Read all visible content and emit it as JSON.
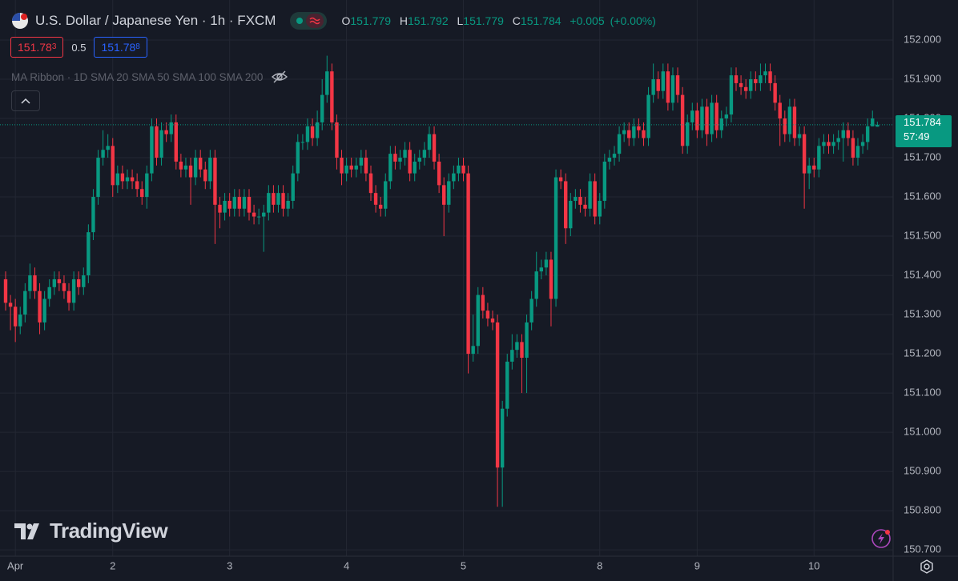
{
  "chart_data": {
    "type": "candlestick",
    "title": "U.S. Dollar / Japanese Yen · 1h · FXCM",
    "up_color": "#089981",
    "down_color": "#f23645",
    "grid": true,
    "last_price_line": true,
    "ylim": [
      150.684,
      152.102
    ],
    "yticks": [
      {
        "value": 150.7,
        "label": "150.700"
      },
      {
        "value": 150.8,
        "label": "150.800"
      },
      {
        "value": 150.9,
        "label": "150.900"
      },
      {
        "value": 151.0,
        "label": "151.000"
      },
      {
        "value": 151.1,
        "label": "151.100"
      },
      {
        "value": 151.2,
        "label": "151.200"
      },
      {
        "value": 151.3,
        "label": "151.300"
      },
      {
        "value": 151.4,
        "label": "151.400"
      },
      {
        "value": 151.5,
        "label": "151.500"
      },
      {
        "value": 151.6,
        "label": "151.600"
      },
      {
        "value": 151.7,
        "label": "151.700"
      },
      {
        "value": 151.8,
        "label": "151.800"
      },
      {
        "value": 151.9,
        "label": "151.900"
      },
      {
        "value": 152.0,
        "label": "152.000"
      }
    ],
    "categories": [
      null,
      null,
      "Apr",
      null,
      null,
      null,
      null,
      null,
      null,
      null,
      null,
      null,
      null,
      null,
      null,
      null,
      null,
      null,
      null,
      null,
      null,
      null,
      "2",
      null,
      null,
      null,
      null,
      null,
      null,
      null,
      null,
      null,
      null,
      null,
      null,
      null,
      null,
      null,
      null,
      null,
      null,
      null,
      null,
      null,
      null,
      null,
      "3",
      null,
      null,
      null,
      null,
      null,
      null,
      null,
      null,
      null,
      null,
      null,
      null,
      null,
      null,
      null,
      null,
      null,
      null,
      null,
      null,
      null,
      null,
      null,
      "4",
      null,
      null,
      null,
      null,
      null,
      null,
      null,
      null,
      null,
      null,
      null,
      null,
      null,
      null,
      null,
      null,
      null,
      null,
      null,
      null,
      null,
      null,
      null,
      "5",
      null,
      null,
      null,
      null,
      null,
      null,
      null,
      null,
      null,
      null,
      null,
      null,
      null,
      null,
      null,
      null,
      null,
      null,
      null,
      null,
      null,
      null,
      null,
      null,
      null,
      null,
      null,
      "8",
      null,
      null,
      null,
      null,
      null,
      null,
      null,
      null,
      null,
      null,
      null,
      null,
      null,
      null,
      null,
      null,
      null,
      null,
      null,
      "9",
      null,
      null,
      null,
      null,
      null,
      null,
      null,
      null,
      null,
      null,
      null,
      null,
      null,
      null,
      null,
      null,
      null,
      null,
      null,
      null,
      null,
      null,
      null,
      "10",
      null,
      null,
      null,
      null,
      null,
      null,
      null,
      null,
      null,
      null,
      null,
      null,
      null
    ],
    "open": [
      151.39,
      151.33,
      151.32,
      151.27,
      151.3,
      151.36,
      151.4,
      151.36,
      151.28,
      151.34,
      151.37,
      151.39,
      151.38,
      151.36,
      151.33,
      151.39,
      151.37,
      151.4,
      151.51,
      151.6,
      151.7,
      151.72,
      151.73,
      151.63,
      151.66,
      151.64,
      151.65,
      151.64,
      151.62,
      151.6,
      151.66,
      151.78,
      151.7,
      151.77,
      151.76,
      151.79,
      151.69,
      151.67,
      151.68,
      151.65,
      151.7,
      151.67,
      151.64,
      151.7,
      151.58,
      151.56,
      151.59,
      151.57,
      151.6,
      151.57,
      151.6,
      151.56,
      151.55,
      151.55,
      151.56,
      151.61,
      151.58,
      151.61,
      151.57,
      151.59,
      151.66,
      151.74,
      151.74,
      151.78,
      151.75,
      151.79,
      151.86,
      151.92,
      151.79,
      151.7,
      151.66,
      151.68,
      151.67,
      151.68,
      151.7,
      151.66,
      151.61,
      151.58,
      151.57,
      151.64,
      151.71,
      151.69,
      151.7,
      151.72,
      151.66,
      151.69,
      151.7,
      151.72,
      151.76,
      151.69,
      151.63,
      151.58,
      151.64,
      151.66,
      151.68,
      151.66,
      151.2,
      151.22,
      151.35,
      151.31,
      151.29,
      151.28,
      150.91,
      151.06,
      151.18,
      151.21,
      151.23,
      151.19,
      151.28,
      151.34,
      151.41,
      151.42,
      151.44,
      151.34,
      151.65,
      151.64,
      151.52,
      151.59,
      151.6,
      151.58,
      151.57,
      151.64,
      151.55,
      151.59,
      151.69,
      151.7,
      151.71,
      151.76,
      151.77,
      151.75,
      151.78,
      151.77,
      151.75,
      151.86,
      151.9,
      151.87,
      151.92,
      151.84,
      151.91,
      151.86,
      151.73,
      151.79,
      151.82,
      151.77,
      151.83,
      151.76,
      151.84,
      151.77,
      151.8,
      151.81,
      151.91,
      151.89,
      151.88,
      151.87,
      151.9,
      151.89,
      151.91,
      151.92,
      151.89,
      151.84,
      151.8,
      151.76,
      151.83,
      151.75,
      151.76,
      151.66,
      151.68,
      151.67,
      151.73,
      151.74,
      151.73,
      151.74,
      151.75,
      151.77,
      151.75,
      151.7,
      151.73,
      151.74,
      151.78,
      151.779
    ],
    "high": [
      151.41,
      151.35,
      151.34,
      151.32,
      151.38,
      151.43,
      151.42,
      151.38,
      151.36,
      151.39,
      151.41,
      151.41,
      151.4,
      151.38,
      151.41,
      151.41,
      151.42,
      151.53,
      151.62,
      151.72,
      151.77,
      151.76,
      151.75,
      151.68,
      151.68,
      151.67,
      151.67,
      151.66,
      151.64,
      151.68,
      151.8,
      151.8,
      151.79,
      151.79,
      151.81,
      151.81,
      151.71,
      151.7,
      151.7,
      151.72,
      151.72,
      151.69,
      151.72,
      151.72,
      151.6,
      151.61,
      151.61,
      151.62,
      151.62,
      151.62,
      151.62,
      151.58,
      151.57,
      151.58,
      151.63,
      151.63,
      151.63,
      151.63,
      151.61,
      151.68,
      151.76,
      151.76,
      151.8,
      151.8,
      151.82,
      151.9,
      151.96,
      151.94,
      151.81,
      151.72,
      151.7,
      151.7,
      151.7,
      151.72,
      151.72,
      151.68,
      151.63,
      151.6,
      151.66,
      151.73,
      151.73,
      151.72,
      151.74,
      151.74,
      151.71,
      151.72,
      151.74,
      151.78,
      151.78,
      151.71,
      151.65,
      151.66,
      151.68,
      151.7,
      151.7,
      151.68,
      151.3,
      151.37,
      151.37,
      151.33,
      151.31,
      151.3,
      151.08,
      151.2,
      151.25,
      151.25,
      151.25,
      151.3,
      151.36,
      151.46,
      151.44,
      151.46,
      151.46,
      151.67,
      151.67,
      151.66,
      151.61,
      151.62,
      151.62,
      151.6,
      151.66,
      151.66,
      151.61,
      151.71,
      151.72,
      151.73,
      151.78,
      151.79,
      151.79,
      151.8,
      151.8,
      151.79,
      151.88,
      151.94,
      151.92,
      151.94,
      151.94,
      151.93,
      151.93,
      151.88,
      151.81,
      151.84,
      151.84,
      151.85,
      151.85,
      151.86,
      151.86,
      151.82,
      151.83,
      151.93,
      151.93,
      151.91,
      151.9,
      151.92,
      151.92,
      151.94,
      151.94,
      151.94,
      151.91,
      151.86,
      151.82,
      151.85,
      151.85,
      151.78,
      151.78,
      151.7,
      151.7,
      151.75,
      151.76,
      151.76,
      151.76,
      151.77,
      151.79,
      151.79,
      151.77,
      151.75,
      151.76,
      151.8,
      151.82,
      151.792
    ],
    "low": [
      151.31,
      151.26,
      151.23,
      151.25,
      151.28,
      151.34,
      151.34,
      151.25,
      151.26,
      151.32,
      151.35,
      151.36,
      151.34,
      151.31,
      151.31,
      151.35,
      151.35,
      151.38,
      151.49,
      151.58,
      151.68,
      151.7,
      151.6,
      151.61,
      151.62,
      151.62,
      151.62,
      151.6,
      151.58,
      151.57,
      151.64,
      151.68,
      151.68,
      151.74,
      151.74,
      151.67,
      151.65,
      151.65,
      151.58,
      151.63,
      151.65,
      151.62,
      151.62,
      151.48,
      151.52,
      151.54,
      151.55,
      151.55,
      151.55,
      151.55,
      151.54,
      151.53,
      151.53,
      151.46,
      151.54,
      151.56,
      151.56,
      151.55,
      151.55,
      151.57,
      151.64,
      151.72,
      151.72,
      151.73,
      151.73,
      151.77,
      151.84,
      151.77,
      151.67,
      151.63,
      151.64,
      151.65,
      151.65,
      151.66,
      151.64,
      151.59,
      151.56,
      151.55,
      151.55,
      151.62,
      151.67,
      151.67,
      151.68,
      151.64,
      151.64,
      151.67,
      151.68,
      151.7,
      151.67,
      151.61,
      151.5,
      151.56,
      151.62,
      151.64,
      151.64,
      151.15,
      151.18,
      151.2,
      151.29,
      151.27,
      151.26,
      150.81,
      150.81,
      151.04,
      151.16,
      151.19,
      151.1,
      151.1,
      151.26,
      151.32,
      151.39,
      151.4,
      151.27,
      151.32,
      151.62,
      151.48,
      151.5,
      151.57,
      151.56,
      151.55,
      151.55,
      151.53,
      151.53,
      151.57,
      151.67,
      151.68,
      151.69,
      151.74,
      151.73,
      151.73,
      151.75,
      151.73,
      151.73,
      151.84,
      151.85,
      151.85,
      151.82,
      151.82,
      151.84,
      151.71,
      151.71,
      151.77,
      151.75,
      151.75,
      151.73,
      151.74,
      151.75,
      151.75,
      151.78,
      151.79,
      151.87,
      151.86,
      151.85,
      151.85,
      151.87,
      151.87,
      151.89,
      151.87,
      151.82,
      151.73,
      151.74,
      151.74,
      151.73,
      151.73,
      151.57,
      151.62,
      151.65,
      151.65,
      151.71,
      151.71,
      151.71,
      151.72,
      151.69,
      151.73,
      151.68,
      151.68,
      151.71,
      151.72,
      151.78,
      151.779
    ],
    "close": [
      151.33,
      151.32,
      151.27,
      151.3,
      151.36,
      151.4,
      151.36,
      151.28,
      151.34,
      151.37,
      151.39,
      151.38,
      151.36,
      151.33,
      151.39,
      151.37,
      151.4,
      151.51,
      151.6,
      151.7,
      151.72,
      151.73,
      151.63,
      151.66,
      151.64,
      151.65,
      151.64,
      151.62,
      151.6,
      151.66,
      151.78,
      151.7,
      151.77,
      151.76,
      151.79,
      151.69,
      151.67,
      151.68,
      151.65,
      151.7,
      151.67,
      151.64,
      151.7,
      151.58,
      151.56,
      151.59,
      151.57,
      151.6,
      151.57,
      151.6,
      151.56,
      151.55,
      151.55,
      151.56,
      151.61,
      151.58,
      151.61,
      151.57,
      151.59,
      151.66,
      151.74,
      151.74,
      151.78,
      151.75,
      151.79,
      151.86,
      151.92,
      151.79,
      151.7,
      151.66,
      151.68,
      151.67,
      151.68,
      151.7,
      151.66,
      151.61,
      151.58,
      151.57,
      151.64,
      151.71,
      151.69,
      151.7,
      151.72,
      151.66,
      151.69,
      151.7,
      151.72,
      151.76,
      151.69,
      151.63,
      151.58,
      151.64,
      151.66,
      151.68,
      151.66,
      151.2,
      151.22,
      151.35,
      151.31,
      151.29,
      151.28,
      150.91,
      151.06,
      151.18,
      151.21,
      151.23,
      151.19,
      151.28,
      151.34,
      151.41,
      151.42,
      151.44,
      151.34,
      151.65,
      151.64,
      151.52,
      151.59,
      151.6,
      151.58,
      151.57,
      151.64,
      151.55,
      151.59,
      151.69,
      151.7,
      151.71,
      151.76,
      151.77,
      151.75,
      151.78,
      151.77,
      151.75,
      151.86,
      151.9,
      151.87,
      151.92,
      151.84,
      151.91,
      151.86,
      151.73,
      151.79,
      151.82,
      151.77,
      151.83,
      151.76,
      151.84,
      151.77,
      151.8,
      151.81,
      151.91,
      151.89,
      151.88,
      151.87,
      151.9,
      151.89,
      151.91,
      151.92,
      151.89,
      151.84,
      151.8,
      151.76,
      151.83,
      151.75,
      151.76,
      151.66,
      151.68,
      151.67,
      151.73,
      151.74,
      151.73,
      151.74,
      151.75,
      151.77,
      151.75,
      151.7,
      151.73,
      151.74,
      151.78,
      151.8,
      151.784
    ]
  },
  "toolbar": {
    "ohlc_labels": [
      "O",
      "H",
      "L",
      "C"
    ],
    "change": "+0.005",
    "change_pct": "(+0.00%)",
    "sell": {
      "main": "151.78",
      "pip": "3"
    },
    "spread": "0.5",
    "buy": {
      "main": "151.78",
      "pip": "8"
    },
    "indicator": "MA Ribbon · 1D SMA 20 SMA 50 SMA 100 SMA 200",
    "countdown": "57:49",
    "logo": "TradingView"
  }
}
